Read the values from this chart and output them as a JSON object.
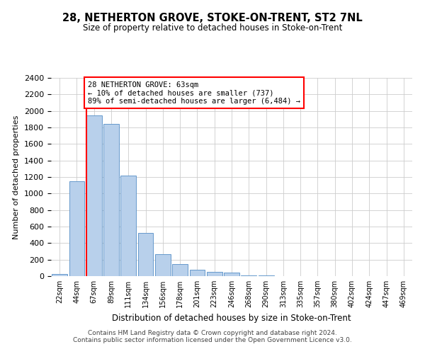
{
  "title": "28, NETHERTON GROVE, STOKE-ON-TRENT, ST2 7NL",
  "subtitle": "Size of property relative to detached houses in Stoke-on-Trent",
  "xlabel": "Distribution of detached houses by size in Stoke-on-Trent",
  "ylabel": "Number of detached properties",
  "bar_labels": [
    "22sqm",
    "44sqm",
    "67sqm",
    "89sqm",
    "111sqm",
    "134sqm",
    "156sqm",
    "178sqm",
    "201sqm",
    "223sqm",
    "246sqm",
    "268sqm",
    "290sqm",
    "313sqm",
    "335sqm",
    "357sqm",
    "380sqm",
    "402sqm",
    "424sqm",
    "447sqm",
    "469sqm"
  ],
  "bar_values": [
    25,
    1150,
    1950,
    1840,
    1220,
    520,
    265,
    150,
    80,
    50,
    40,
    10,
    8,
    3,
    2,
    1,
    1,
    0,
    0,
    0,
    0
  ],
  "bar_color": "#b8d0eb",
  "bar_edge_color": "#6699cc",
  "red_line_x": 1.575,
  "annotation_title": "28 NETHERTON GROVE: 63sqm",
  "annotation_line1": "← 10% of detached houses are smaller (737)",
  "annotation_line2": "89% of semi-detached houses are larger (6,484) →",
  "ylim": [
    0,
    2400
  ],
  "yticks": [
    0,
    200,
    400,
    600,
    800,
    1000,
    1200,
    1400,
    1600,
    1800,
    2000,
    2200,
    2400
  ],
  "footer_line1": "Contains HM Land Registry data © Crown copyright and database right 2024.",
  "footer_line2": "Contains public sector information licensed under the Open Government Licence v3.0.",
  "background_color": "#ffffff",
  "grid_color": "#cccccc"
}
